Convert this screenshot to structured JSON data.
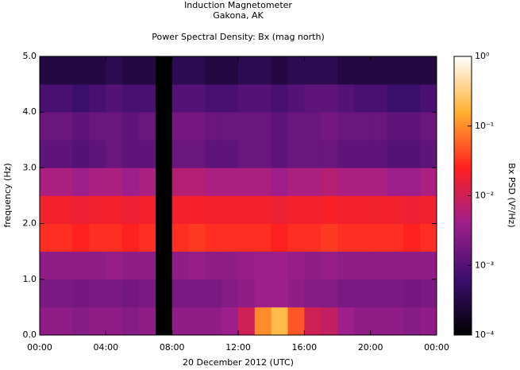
{
  "chart_data": {
    "type": "heatmap",
    "title": "Induction Magnetometer",
    "subtitle": "Gakona, AK",
    "plot_title": "Power Spectral Density: Bx (mag north)",
    "xlabel": "20 December 2012 (UTC)",
    "ylabel": "frequency (Hz)",
    "colorbar_label": "Bx PSD (V²/Hz)",
    "x": [
      0.5,
      1.5,
      2.5,
      3.5,
      4.5,
      5.5,
      6.5,
      7.5,
      8.5,
      9.5,
      10.5,
      11.5,
      12.5,
      13.5,
      14.5,
      15.5,
      16.5,
      17.5,
      18.5,
      19.5,
      20.5,
      21.5,
      22.5,
      23.5
    ],
    "y": [
      0.25,
      0.75,
      1.25,
      1.75,
      2.25,
      2.75,
      3.25,
      3.75,
      4.25,
      4.75
    ],
    "values": [
      [
        0.003,
        0.003,
        0.0025,
        0.003,
        0.003,
        0.0025,
        0.003,
        null,
        0.003,
        0.003,
        0.003,
        0.004,
        0.01,
        0.1,
        0.2,
        0.05,
        0.01,
        0.008,
        0.004,
        0.003,
        0.003,
        0.003,
        0.0025,
        0.003
      ],
      [
        0.002,
        0.002,
        0.0018,
        0.002,
        0.002,
        0.0018,
        0.002,
        null,
        0.002,
        0.002,
        0.002,
        0.0025,
        0.003,
        0.004,
        0.004,
        0.003,
        0.0025,
        0.0025,
        0.002,
        0.002,
        0.002,
        0.002,
        0.0018,
        0.002
      ],
      [
        0.003,
        0.003,
        0.003,
        0.003,
        0.0035,
        0.003,
        0.003,
        null,
        0.003,
        0.0035,
        0.003,
        0.003,
        0.0035,
        0.004,
        0.004,
        0.0035,
        0.003,
        0.0035,
        0.003,
        0.003,
        0.003,
        0.003,
        0.003,
        0.003
      ],
      [
        0.03,
        0.03,
        0.025,
        0.03,
        0.03,
        0.025,
        0.03,
        null,
        0.03,
        0.035,
        0.03,
        0.03,
        0.03,
        0.03,
        0.025,
        0.03,
        0.03,
        0.035,
        0.03,
        0.03,
        0.03,
        0.03,
        0.025,
        0.03
      ],
      [
        0.02,
        0.02,
        0.018,
        0.02,
        0.02,
        0.018,
        0.02,
        null,
        0.02,
        0.022,
        0.02,
        0.02,
        0.02,
        0.02,
        0.018,
        0.02,
        0.02,
        0.022,
        0.02,
        0.02,
        0.02,
        0.02,
        0.018,
        0.02
      ],
      [
        0.005,
        0.005,
        0.004,
        0.005,
        0.005,
        0.004,
        0.005,
        null,
        0.006,
        0.006,
        0.005,
        0.005,
        0.005,
        0.005,
        0.004,
        0.005,
        0.005,
        0.006,
        0.005,
        0.005,
        0.005,
        0.004,
        0.004,
        0.005
      ],
      [
        0.0012,
        0.0012,
        0.001,
        0.0012,
        0.0015,
        0.0012,
        0.0012,
        null,
        0.0015,
        0.0015,
        0.0012,
        0.0012,
        0.0015,
        0.0015,
        0.0012,
        0.0015,
        0.0015,
        0.0015,
        0.0012,
        0.0012,
        0.0012,
        0.001,
        0.001,
        0.0012
      ],
      [
        0.0015,
        0.0015,
        0.0012,
        0.0015,
        0.0015,
        0.0012,
        0.0015,
        null,
        0.0018,
        0.0018,
        0.0015,
        0.0015,
        0.0015,
        0.0015,
        0.0012,
        0.0015,
        0.0015,
        0.0018,
        0.0015,
        0.0015,
        0.0015,
        0.0012,
        0.0012,
        0.0015
      ],
      [
        0.0008,
        0.0008,
        0.0006,
        0.0008,
        0.001,
        0.0008,
        0.0008,
        null,
        0.001,
        0.001,
        0.0008,
        0.0008,
        0.001,
        0.001,
        0.0008,
        0.001,
        0.0012,
        0.0012,
        0.001,
        0.0008,
        0.0008,
        0.0006,
        0.0006,
        0.0008
      ],
      [
        0.0003,
        0.0003,
        0.0003,
        0.0003,
        0.0004,
        0.0003,
        0.0003,
        null,
        0.0004,
        0.0004,
        0.0003,
        0.0003,
        0.0004,
        0.0004,
        0.0003,
        0.0004,
        0.0004,
        0.0004,
        0.0003,
        0.0003,
        0.0003,
        0.0003,
        0.0003,
        0.0003
      ]
    ],
    "xlim": [
      0,
      24
    ],
    "xticks": [
      {
        "value": 0,
        "label": "00:00"
      },
      {
        "value": 4,
        "label": "04:00"
      },
      {
        "value": 8,
        "label": "08:00"
      },
      {
        "value": 12,
        "label": "12:00"
      },
      {
        "value": 16,
        "label": "16:00"
      },
      {
        "value": 20,
        "label": "20:00"
      },
      {
        "value": 24,
        "label": "00:00"
      }
    ],
    "ylim": [
      0,
      5
    ],
    "yticks": [
      {
        "value": 0,
        "label": "0.0"
      },
      {
        "value": 1,
        "label": "1.0"
      },
      {
        "value": 2,
        "label": "2.0"
      },
      {
        "value": 3,
        "label": "3.0"
      },
      {
        "value": 4,
        "label": "4.0"
      },
      {
        "value": 5,
        "label": "5.0"
      }
    ],
    "zlim": [
      0.0001,
      1
    ],
    "zscale": "log",
    "zticks": [
      {
        "value": 0.0001,
        "label": "10⁻⁴"
      },
      {
        "value": 0.001,
        "label": "10⁻³"
      },
      {
        "value": 0.01,
        "label": "10⁻²"
      },
      {
        "value": 0.1,
        "label": "10⁻¹"
      },
      {
        "value": 1,
        "label": "10⁰"
      }
    ],
    "colormap": [
      "#000000",
      "#3c0e6e",
      "#9e1f8c",
      "#ff2020",
      "#ffb030",
      "#ffffff"
    ]
  }
}
